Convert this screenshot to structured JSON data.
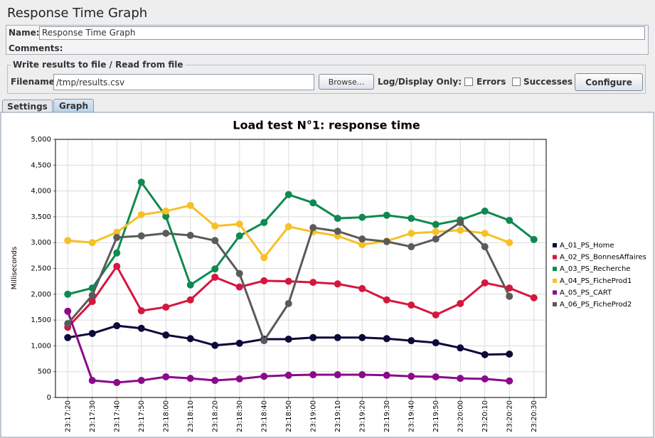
{
  "title": "Response Time Graph",
  "name_label": "Name:",
  "name_value": "Response Time Graph",
  "comments_label": "Comments:",
  "file_group": {
    "legend": "Write results to file / Read from file",
    "filename_label": "Filename",
    "filename_value": "/tmp/results.csv",
    "browse_button": "Browse...",
    "log_display_label": "Log/Display Only:",
    "errors_label": "Errors",
    "successes_label": "Successes",
    "configure_button": "Configure"
  },
  "tabs": [
    "Settings",
    "Graph"
  ],
  "chart_data": {
    "type": "line",
    "title": "Load test N°1: response time",
    "y_label": "Milliseconds",
    "categories": [
      "23:17:20",
      "23:17:30",
      "23:17:40",
      "23:17:50",
      "23:18:00",
      "23:18:10",
      "23:18:20",
      "23:18:30",
      "23:18:40",
      "23:18:50",
      "23:19:00",
      "23:19:10",
      "23:19:20",
      "23:19:30",
      "23:19:40",
      "23:19:50",
      "23:20:00",
      "23:20:10",
      "23:20:20",
      "23:20:30"
    ],
    "series": [
      {
        "name": "A_01_PS_Home",
        "color": "#0b0a3a",
        "values": [
          1160,
          1240,
          1390,
          1340,
          1210,
          1140,
          1010,
          1050,
          1130,
          1130,
          1160,
          1160,
          1160,
          1140,
          1100,
          1060,
          960,
          830,
          840,
          null
        ]
      },
      {
        "name": "A_02_PS_BonnesAffaires",
        "color": "#d6163e",
        "values": [
          1360,
          1860,
          2540,
          1680,
          1750,
          1890,
          2330,
          2140,
          2260,
          2250,
          2230,
          2200,
          2110,
          1890,
          1790,
          1600,
          1820,
          2220,
          2120,
          1930
        ]
      },
      {
        "name": "A_03_PS_Recherche",
        "color": "#0e8a4f",
        "values": [
          2000,
          2120,
          2800,
          4170,
          3510,
          2180,
          2490,
          3130,
          3390,
          3930,
          3770,
          3470,
          3490,
          3530,
          3470,
          3350,
          3440,
          3610,
          3430,
          3060
        ]
      },
      {
        "name": "A_04_PS_FicheProd1",
        "color": "#f7c025",
        "values": [
          3040,
          3000,
          3200,
          3540,
          3610,
          3720,
          3320,
          3360,
          2710,
          3310,
          3210,
          3130,
          2960,
          3030,
          3180,
          3210,
          3240,
          3180,
          3000,
          null
        ]
      },
      {
        "name": "A_05_PS_CART",
        "color": "#8a0a8a",
        "values": [
          1670,
          330,
          290,
          330,
          400,
          370,
          330,
          360,
          410,
          430,
          440,
          440,
          440,
          430,
          410,
          400,
          370,
          360,
          320,
          null
        ]
      },
      {
        "name": "A_06_PS_FicheProd2",
        "color": "#5a5a5a",
        "values": [
          1430,
          1980,
          3100,
          3130,
          3180,
          3140,
          3040,
          2400,
          1100,
          1820,
          3290,
          3220,
          3070,
          3020,
          2920,
          3070,
          3390,
          2920,
          1960,
          null
        ]
      }
    ],
    "ylim": [
      0,
      5000
    ],
    "yticks": [
      0,
      500,
      {
        "value": 1000,
        "label": "1,000"
      },
      {
        "value": 1500,
        "label": "1,500"
      },
      {
        "value": 2000,
        "label": "2,000"
      },
      {
        "value": 2500,
        "label": "2,500"
      },
      {
        "value": 3000,
        "label": "3,000"
      },
      {
        "value": 3500,
        "label": "3,500"
      },
      {
        "value": 4000,
        "label": "4,000"
      },
      {
        "value": 4500,
        "label": "4,500"
      },
      {
        "value": 5000,
        "label": "5,000"
      }
    ],
    "grid": true,
    "legend": "right"
  }
}
